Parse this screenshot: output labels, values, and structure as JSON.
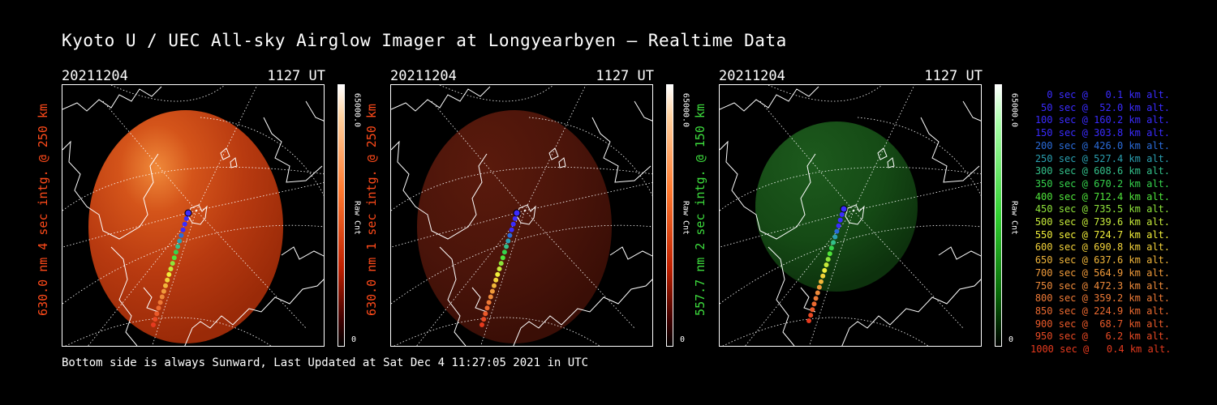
{
  "title": "Kyoto U / UEC All-sky Airglow Imager at Longyearbyen — Realtime Data",
  "footer": "Bottom side is always Sunward, Last Updated at Sat Dec  4 11:27:05 2021 in UTC",
  "panels": [
    {
      "date": "20211204",
      "time": "1127 UT",
      "label": "630.0 nm 4 sec intg. @ 250 km",
      "label_color": "#ff4a1a",
      "scale_max": "65000.0",
      "scale_min": "0",
      "unit": "Raw Cnt",
      "palette": "red",
      "intensity": "bright"
    },
    {
      "date": "20211204",
      "time": "1127 UT",
      "label": "630.0 nm 1 sec intg. @ 250 km",
      "label_color": "#ff4a1a",
      "scale_max": "65000.0",
      "scale_min": "0",
      "unit": "Raw Cnt",
      "palette": "red",
      "intensity": "dim"
    },
    {
      "date": "20211204",
      "time": "1127 UT",
      "label": "557.7 nm 2 sec intg. @ 150 km",
      "label_color": "#3ddc3d",
      "scale_max": "65000.0",
      "scale_min": "0",
      "unit": "Raw Cnt",
      "palette": "green",
      "intensity": "dim"
    }
  ],
  "legend": [
    {
      "text": "0 sec @   0.1 km alt.",
      "color": "#3a2bff"
    },
    {
      "text": "50 sec @  52.0 km alt.",
      "color": "#3a2bff"
    },
    {
      "text": "100 sec @ 160.2 km alt.",
      "color": "#3a2bff"
    },
    {
      "text": "150 sec @ 303.8 km alt.",
      "color": "#3a2bff"
    },
    {
      "text": "200 sec @ 426.0 km alt.",
      "color": "#2a6bd9"
    },
    {
      "text": "250 sec @ 527.4 km alt.",
      "color": "#2a9fb0"
    },
    {
      "text": "300 sec @ 608.6 km alt.",
      "color": "#33c08a"
    },
    {
      "text": "350 sec @ 670.2 km alt.",
      "color": "#35d24c"
    },
    {
      "text": "400 sec @ 712.4 km alt.",
      "color": "#4fe33a"
    },
    {
      "text": "450 sec @ 735.5 km alt.",
      "color": "#8ee43a"
    },
    {
      "text": "500 sec @ 739.6 km alt.",
      "color": "#c6ea3a"
    },
    {
      "text": "550 sec @ 724.7 km alt.",
      "color": "#f0ee3a"
    },
    {
      "text": "600 sec @ 690.8 km alt.",
      "color": "#f2d23a"
    },
    {
      "text": "650 sec @ 637.6 km alt.",
      "color": "#f2b63a"
    },
    {
      "text": "700 sec @ 564.9 km alt.",
      "color": "#f09a3a"
    },
    {
      "text": "750 sec @ 472.3 km alt.",
      "color": "#ee8a3a"
    },
    {
      "text": "800 sec @ 359.2 km alt.",
      "color": "#ee7a36"
    },
    {
      "text": "850 sec @ 224.9 km alt.",
      "color": "#ec6a30"
    },
    {
      "text": "900 sec @  68.7 km alt.",
      "color": "#ea5a2a"
    },
    {
      "text": "950 sec @   6.2 km alt.",
      "color": "#e84a24"
    },
    {
      "text": "1000 sec @   0.4 km alt.",
      "color": "#e63a1e"
    }
  ]
}
